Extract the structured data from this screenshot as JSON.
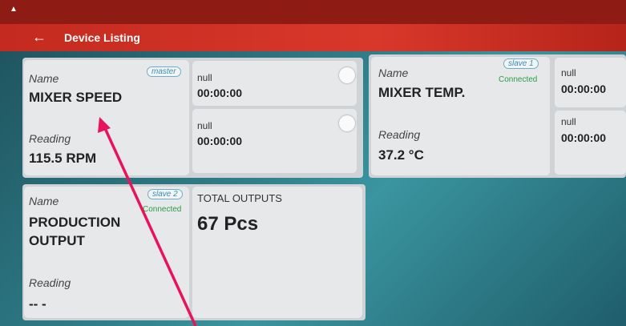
{
  "header": {
    "title": "Device Listing"
  },
  "devices": [
    {
      "name_label": "Name",
      "role": "master",
      "name": "MIXER SPEED",
      "reading_label": "Reading",
      "reading": "115.5 RPM",
      "slots": [
        {
          "label": "null",
          "time": "00:00:00"
        },
        {
          "label": "null",
          "time": "00:00:00"
        }
      ]
    },
    {
      "name_label": "Name",
      "role": "slave 1",
      "status": "Connected",
      "name": "MIXER TEMP.",
      "reading_label": "Reading",
      "reading": "37.2 °C",
      "slots": [
        {
          "label": "null",
          "time": "00:00:00"
        },
        {
          "label": "null",
          "time": "00:00:00"
        }
      ]
    },
    {
      "name_label": "Name",
      "role": "slave 2",
      "status": "Connected",
      "name": "PRODUCTION OUTPUT",
      "reading_label": "Reading",
      "reading": "-- -",
      "output_label": "TOTAL OUTPUTS",
      "output": "67 Pcs"
    }
  ]
}
